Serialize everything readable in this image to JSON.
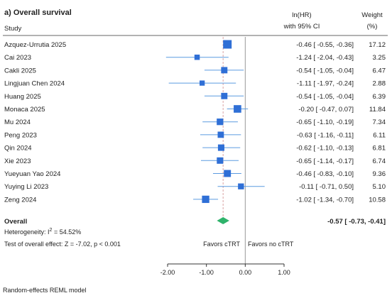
{
  "chart_data": {
    "type": "forest",
    "title": "a) Overall survival",
    "column_headers": {
      "study": "Study",
      "effect_line1": "ln(HR)",
      "effect_line2": "with 95% CI",
      "weight_line1": "Weight",
      "weight_line2": "(%)"
    },
    "rows": [
      {
        "study": "Azquez-Urrutia 2025",
        "effect": -0.46,
        "lower": -0.55,
        "upper": -0.36,
        "weight": 17.12,
        "ci_text": "-0.46 [ -0.55, -0.36]",
        "weight_text": "17.12"
      },
      {
        "study": "Cai 2023",
        "effect": -1.24,
        "lower": -2.04,
        "upper": -0.43,
        "weight": 3.25,
        "ci_text": "-1.24 [ -2.04, -0.43]",
        "weight_text": "3.25"
      },
      {
        "study": "Cakli 2025",
        "effect": -0.54,
        "lower": -1.05,
        "upper": -0.04,
        "weight": 6.47,
        "ci_text": "-0.54 [ -1.05, -0.04]",
        "weight_text": "6.47"
      },
      {
        "study": "Lingjuan Chen 2024",
        "effect": -1.11,
        "lower": -1.97,
        "upper": -0.24,
        "weight": 2.88,
        "ci_text": "-1.11 [ -1.97, -0.24]",
        "weight_text": "2.88"
      },
      {
        "study": "Huang 2025",
        "effect": -0.54,
        "lower": -1.05,
        "upper": -0.04,
        "weight": 6.39,
        "ci_text": "-0.54 [ -1.05, -0.04]",
        "weight_text": "6.39"
      },
      {
        "study": "Monaca 2025",
        "effect": -0.2,
        "lower": -0.47,
        "upper": 0.07,
        "weight": 11.84,
        "ci_text": "-0.20 [ -0.47,  0.07]",
        "weight_text": "11.84"
      },
      {
        "study": "Mu 2024",
        "effect": -0.65,
        "lower": -1.1,
        "upper": -0.19,
        "weight": 7.34,
        "ci_text": "-0.65 [ -1.10, -0.19]",
        "weight_text": "7.34"
      },
      {
        "study": "Peng 2023",
        "effect": -0.63,
        "lower": -1.16,
        "upper": -0.11,
        "weight": 6.11,
        "ci_text": "-0.63 [ -1.16, -0.11]",
        "weight_text": "6.11"
      },
      {
        "study": "Qin 2024",
        "effect": -0.62,
        "lower": -1.1,
        "upper": -0.13,
        "weight": 6.81,
        "ci_text": "-0.62 [ -1.10, -0.13]",
        "weight_text": "6.81"
      },
      {
        "study": "Xie 2023",
        "effect": -0.65,
        "lower": -1.14,
        "upper": -0.17,
        "weight": 6.74,
        "ci_text": "-0.65 [ -1.14, -0.17]",
        "weight_text": "6.74"
      },
      {
        "study": "Yueyuan Yao 2024",
        "effect": -0.46,
        "lower": -0.83,
        "upper": -0.1,
        "weight": 9.36,
        "ci_text": "-0.46 [ -0.83, -0.10]",
        "weight_text": "9.36"
      },
      {
        "study": "Yuying Li 2023",
        "effect": -0.11,
        "lower": -0.71,
        "upper": 0.5,
        "weight": 5.1,
        "ci_text": "-0.11 [ -0.71,  0.50]",
        "weight_text": "5.10"
      },
      {
        "study": "Zeng 2024",
        "effect": -1.02,
        "lower": -1.34,
        "upper": -0.7,
        "weight": 10.58,
        "ci_text": "-1.02 [ -1.34, -0.70]",
        "weight_text": "10.58"
      }
    ],
    "overall": {
      "label": "Overall",
      "effect": -0.57,
      "lower": -0.73,
      "upper": -0.41,
      "ci_text": "-0.57 [ -0.73, -0.41]"
    },
    "heterogeneity_label": "Heterogeneity: I",
    "heterogeneity_superscript": "2",
    "heterogeneity_value": " = 54.52%",
    "overall_effect_test": "Test of overall effect: Z = -7.02, p < 0.001",
    "favors_left": "Favors cTRT",
    "favors_right": "Favors no cTRT",
    "x_ticks": [
      -2.0,
      -1.0,
      0.0,
      1.0
    ],
    "x_tick_labels": [
      "-2.00",
      "-1.00",
      "0.00",
      "1.00"
    ],
    "xlim": [
      -2.0,
      1.0
    ],
    "null_line": 0,
    "footnote": "Random-effects REML model",
    "colors": {
      "study_marker": "#2f6fd6",
      "ci_line": "#5b9be0",
      "overall_diamond": "#2fb36b",
      "favors_left": "#2e9e3e",
      "favors_right": "#4a3fb0",
      "overall_ref_line": "#d9a3a3",
      "null_line": "#999999"
    }
  }
}
